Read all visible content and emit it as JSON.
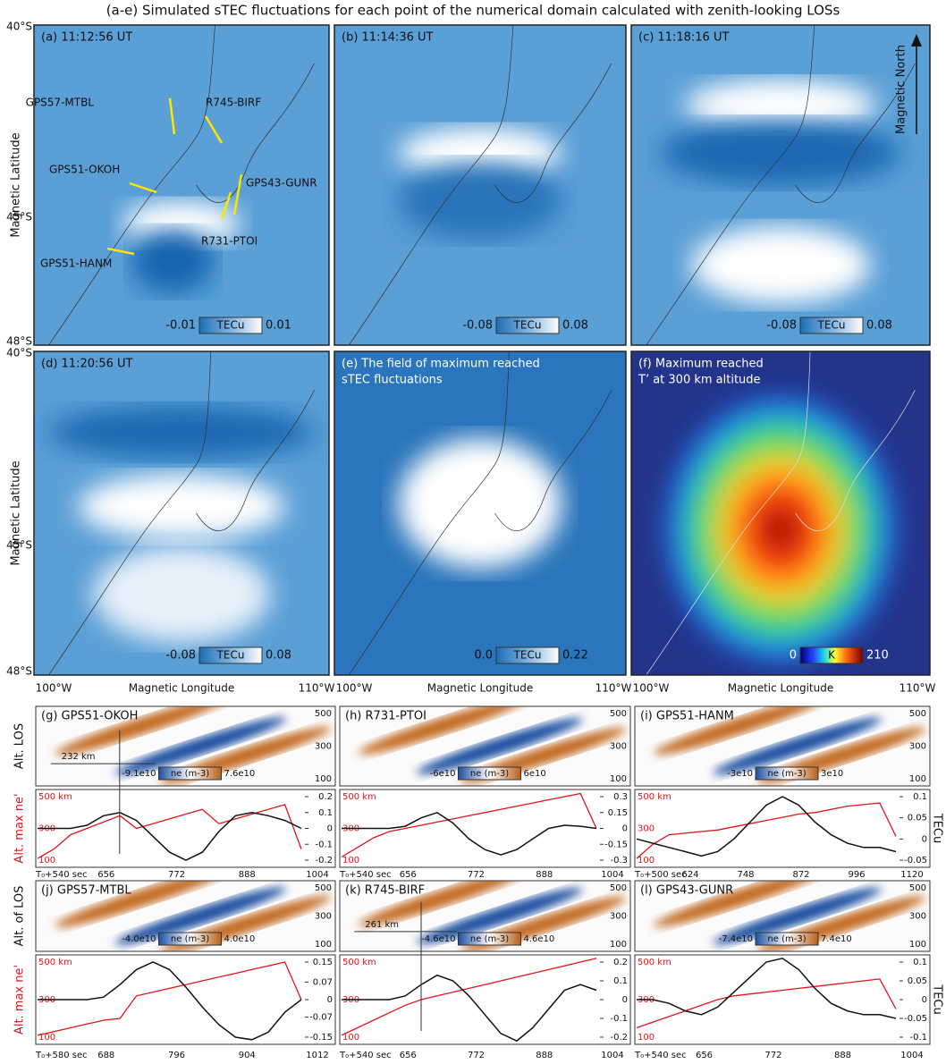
{
  "title": "(a-e) Simulated sTEC fluctuations for each point of the numerical domain calculated with zenith-looking LOSs",
  "map_axes": {
    "y_label": "Magnetic Latitude",
    "y_ticks": [
      "40°S",
      "45°S",
      "48°S"
    ],
    "x_label": "Magnetic Longitude",
    "x_ticks": [
      "100°W",
      "110°W"
    ]
  },
  "maps": [
    {
      "label": [
        "(a) 11:12:56 UT"
      ],
      "colorbar": [
        "-0.01",
        "TECu",
        "0.01"
      ]
    },
    {
      "label": [
        "(b) 11:14:36 UT"
      ],
      "colorbar": [
        "-0.08",
        "TECu",
        "0.08"
      ]
    },
    {
      "label": [
        "(c) 11:18:16 UT"
      ],
      "colorbar": [
        "-0.08",
        "TECu",
        "0.08"
      ]
    },
    {
      "label": [
        "(d) 11:20:56 UT"
      ],
      "colorbar": [
        "-0.08",
        "TECu",
        "0.08"
      ]
    },
    {
      "label": [
        "(e) The field of maximum reached",
        "sTEC fluctuations"
      ],
      "colorbar": [
        "0.0",
        "TECu",
        "0.22"
      ]
    },
    {
      "label": [
        "(f) Maximum reached",
        "T’ at 300 km altitude"
      ],
      "colorbar": [
        "0",
        "K",
        "210"
      ]
    }
  ],
  "stations": [
    "GPS57-MTBL",
    "R745-BIRF",
    "GPS51-OKOH",
    "GPS43-GUNR",
    "R731-PTOI",
    "GPS51-HANM"
  ],
  "north": "Magnetic North",
  "row_labels": {
    "heat_top": "Alt. LOS",
    "heat_bottom": "Alt. of LOS",
    "line": "Alt. max ne'",
    "right": "TECu"
  },
  "panels": [
    {
      "label": "(g) GPS51-OKOH",
      "heat_ticks": [
        500,
        300,
        100
      ],
      "colorbar": [
        "-9.1e10",
        "ne (m-3)",
        "7.6e10"
      ],
      "marker": "232 km",
      "alt_ticks": [
        {
          "value": 500,
          "label": "500 km"
        },
        300,
        100
      ],
      "tec_ticks": [
        0.2,
        0.1,
        0,
        -0.1,
        -0.2
      ],
      "x_ticks": [
        "T₀+540 sec",
        "656",
        "772",
        "888",
        "1004"
      ],
      "tec": [
        0,
        0,
        0,
        0.02,
        0.08,
        0.1,
        0.05,
        -0.05,
        -0.15,
        -0.2,
        -0.15,
        -0.02,
        0.08,
        0.1,
        0.08,
        0.05,
        0
      ],
      "alt": [
        110,
        170,
        260,
        300,
        340,
        380,
        300,
        330,
        360,
        390,
        420,
        330,
        360,
        390,
        420,
        450,
        170
      ]
    },
    {
      "label": "(h) R731-PTOI",
      "heat_ticks": [
        500,
        300,
        100
      ],
      "colorbar": [
        "-6e10",
        "ne (m-3)",
        "6e10"
      ],
      "marker": null,
      "alt_ticks": [
        {
          "value": 500,
          "label": "500 km"
        },
        300,
        100
      ],
      "tec_ticks": [
        0.3,
        0.15,
        0,
        -0.15,
        -0.3
      ],
      "x_ticks": [
        "T₀+540 sec",
        "656",
        "772",
        "888",
        "1004"
      ],
      "tec": [
        0,
        0,
        0,
        0,
        0.02,
        0.1,
        0.15,
        0.05,
        -0.1,
        -0.2,
        -0.25,
        -0.2,
        -0.1,
        0,
        0.03,
        0.02,
        0
      ],
      "alt": [
        120,
        180,
        240,
        280,
        300,
        320,
        340,
        360,
        380,
        400,
        420,
        440,
        460,
        480,
        500,
        520,
        300
      ]
    },
    {
      "label": "(i) GPS51-HANM",
      "heat_ticks": [
        500,
        300,
        100
      ],
      "colorbar": [
        "-3e10",
        "ne (m-3)",
        "3e10"
      ],
      "marker": null,
      "alt_ticks": [
        {
          "value": 500,
          "label": "500 km"
        },
        300,
        100
      ],
      "tec_ticks": [
        0.1,
        0.05,
        0,
        -0.05
      ],
      "x_ticks": [
        "T₀+500 sec",
        "624",
        "748",
        "872",
        "996",
        "1120"
      ],
      "tec": [
        0,
        -0.01,
        -0.02,
        -0.03,
        -0.04,
        -0.03,
        0,
        0.04,
        0.08,
        0.1,
        0.08,
        0.04,
        0.01,
        -0.01,
        -0.02,
        -0.02,
        -0.03
      ],
      "alt": [
        110,
        200,
        260,
        270,
        280,
        290,
        310,
        330,
        350,
        370,
        390,
        400,
        420,
        440,
        450,
        460,
        250
      ]
    },
    {
      "label": "(j) GPS57-MTBL",
      "heat_ticks": [
        500,
        300,
        100
      ],
      "colorbar": [
        "-4.0e10",
        "ne (m-3)",
        "4.0e10"
      ],
      "marker": null,
      "alt_ticks": [
        {
          "value": 500,
          "label": "500 km"
        },
        300,
        100
      ],
      "tec_ticks": [
        0.15,
        0.07,
        0,
        -0.07,
        -0.15
      ],
      "x_ticks": [
        "T₀+580 sec",
        "688",
        "796",
        "904",
        "1012"
      ],
      "tec": [
        0,
        0,
        0,
        0,
        0.01,
        0.06,
        0.12,
        0.15,
        0.12,
        0.05,
        -0.03,
        -0.1,
        -0.15,
        -0.16,
        -0.13,
        -0.05,
        0
      ],
      "alt": [
        110,
        130,
        150,
        170,
        190,
        200,
        320,
        340,
        360,
        380,
        400,
        420,
        440,
        460,
        480,
        500,
        300
      ]
    },
    {
      "label": "(k) R745-BIRF",
      "heat_ticks": [
        500,
        300,
        100
      ],
      "colorbar": [
        "-4.6e10",
        "ne (m-3)",
        "4.6e10"
      ],
      "marker": "261 km",
      "alt_ticks": [
        {
          "value": 500,
          "label": "500 km"
        },
        300,
        100
      ],
      "tec_ticks": [
        0.2,
        0.1,
        0,
        -0.1,
        -0.2
      ],
      "x_ticks": [
        "T₀+540 sec",
        "656",
        "772",
        "888",
        "1004"
      ],
      "tec": [
        0,
        0,
        0,
        0,
        0.02,
        0.08,
        0.13,
        0.1,
        0.02,
        -0.08,
        -0.18,
        -0.22,
        -0.15,
        -0.05,
        0.05,
        0.08,
        0.05
      ],
      "alt": [
        110,
        150,
        190,
        230,
        270,
        300,
        320,
        340,
        360,
        380,
        400,
        420,
        440,
        460,
        480,
        500,
        520
      ]
    },
    {
      "label": "(l) GPS43-GUNR",
      "heat_ticks": [
        500,
        300,
        100
      ],
      "colorbar": [
        "-7.4e10",
        "ne (m-3)",
        "7.4e10"
      ],
      "marker": null,
      "alt_ticks": [
        {
          "value": 500,
          "label": "500 km"
        },
        300,
        100
      ],
      "tec_ticks": [
        0.1,
        0.05,
        0,
        -0.05,
        -0.1
      ],
      "x_ticks": [
        "T₀+540 sec",
        "656",
        "772",
        "888",
        "1004"
      ],
      "tec": [
        0,
        0,
        -0.01,
        -0.03,
        -0.04,
        -0.02,
        0.02,
        0.06,
        0.1,
        0.11,
        0.08,
        0.03,
        -0.01,
        -0.03,
        -0.04,
        -0.04,
        -0.05
      ],
      "alt": [
        150,
        180,
        210,
        240,
        270,
        300,
        320,
        330,
        340,
        350,
        360,
        370,
        380,
        390,
        400,
        410,
        250
      ]
    }
  ]
}
